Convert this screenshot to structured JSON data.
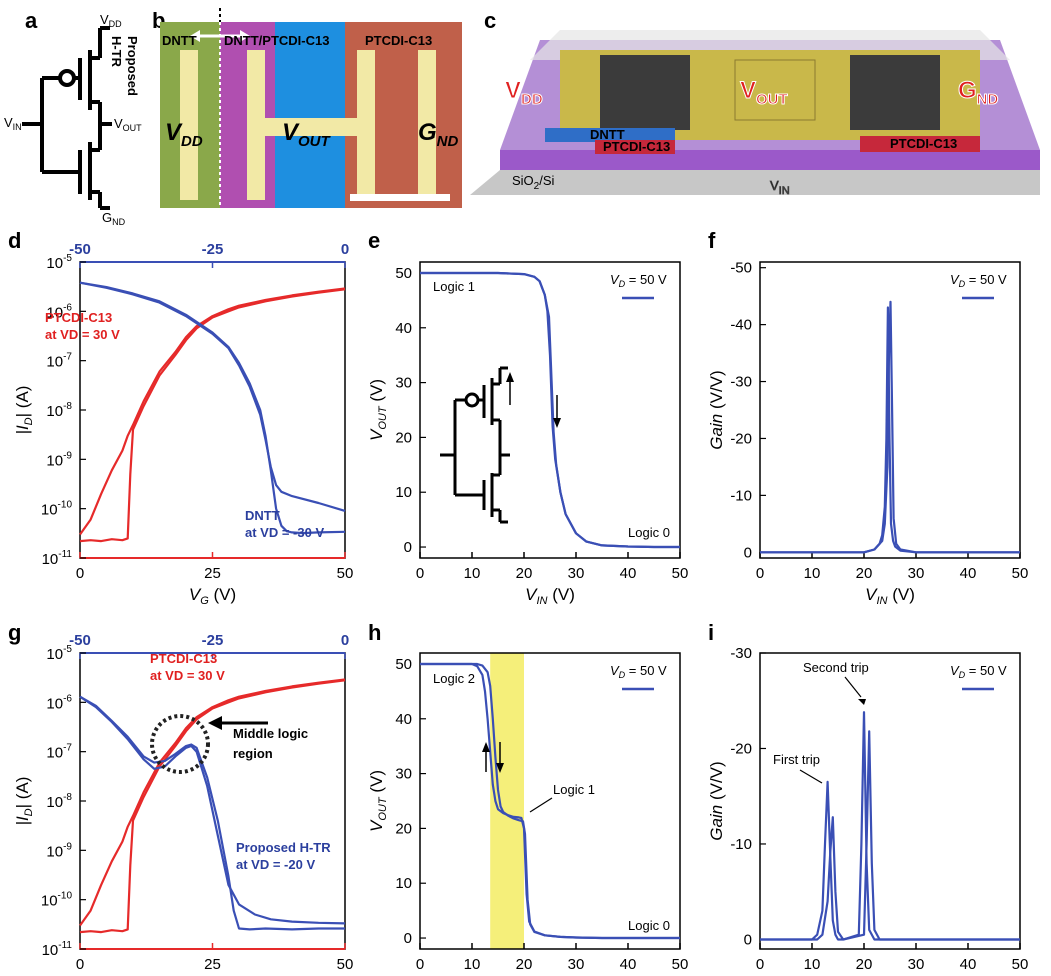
{
  "panels": {
    "a": {
      "letter": "a",
      "vdd": "V",
      "vdd_sub": "DD",
      "vin": "V",
      "vin_sub": "IN",
      "vout": "V",
      "vout_sub": "OUT",
      "gnd": "G",
      "gnd_sub": "ND",
      "title_line1": "Proposed",
      "title_line2": "H-TR"
    },
    "b": {
      "letter": "b",
      "label_left": "DNTT",
      "label_mid": "DNTT/PTCDI-C13",
      "label_right": "PTCDI-C13",
      "vdd": "V",
      "vdd_sub": "DD",
      "vout": "V",
      "vout_sub": "OUT",
      "gnd": "G",
      "gnd_sub": "ND"
    },
    "c": {
      "letter": "c",
      "vdd": "V",
      "vdd_sub": "DD",
      "vout": "V",
      "vout_sub": "OUT",
      "gnd": "G",
      "gnd_sub": "ND",
      "dntt": "DNTT",
      "ptcdi_left": "PTCDI-C13",
      "ptcdi_right": "PTCDI-C13",
      "substrate": "SiO",
      "substrate_sub": "2",
      "substrate_tail": "/Si",
      "vin": "V",
      "vin_sub": "IN"
    },
    "d_letter": "d",
    "e_letter": "e",
    "f_letter": "f",
    "g_letter": "g",
    "h_letter": "h",
    "i_letter": "i"
  },
  "colors": {
    "blue": "#3a4fb5",
    "red": "#e62a2a",
    "yellow": "#f5ef7a"
  },
  "chart_data": [
    {
      "id": "d",
      "type": "line",
      "yscale": "log",
      "xlabel": "V_G (V)",
      "ylabel": "|I_D| (A)",
      "xlim": [
        0,
        50
      ],
      "ylim": [
        1e-11,
        1e-05
      ],
      "xticks": [
        0,
        25,
        50
      ],
      "x2ticks": [
        -50,
        -25,
        0
      ],
      "yticks": [
        "10^-11",
        "10^-10",
        "10^-9",
        "10^-8",
        "10^-7",
        "10^-6",
        "10^-5"
      ],
      "annotations": [
        {
          "text": "PTCDI-C13",
          "color": "red"
        },
        {
          "text": "at VD = 30 V",
          "color": "red"
        },
        {
          "text": "DNTT",
          "color": "blue"
        },
        {
          "text": "at VD = -30 V",
          "color": "blue"
        }
      ],
      "series": [
        {
          "color": "red",
          "x": [
            0,
            2,
            4,
            6,
            8,
            9,
            10,
            12,
            15,
            18,
            20,
            22,
            25,
            28,
            30,
            35,
            40,
            45,
            50
          ],
          "y": [
            3e-11,
            6e-11,
            2e-10,
            6e-10,
            1.5e-09,
            3e-09,
            5e-09,
            1.5e-08,
            6e-08,
            1.5e-07,
            3e-07,
            5e-07,
            8e-07,
            1.1e-06,
            1.3e-06,
            1.7e-06,
            2.1e-06,
            2.5e-06,
            2.9e-06
          ]
        },
        {
          "color": "red",
          "x": [
            0,
            2,
            4,
            6,
            8,
            9,
            9.5,
            10,
            12,
            15,
            18,
            20,
            22,
            25,
            28,
            30,
            35,
            40,
            45,
            50
          ],
          "y": [
            2.2e-11,
            2.3e-11,
            2.2e-11,
            2.4e-11,
            2.3e-11,
            2.5e-11,
            5e-10,
            4e-09,
            1.2e-08,
            5e-08,
            1.3e-07,
            2.6e-07,
            4.5e-07,
            7.5e-07,
            1e-06,
            1.2e-06,
            1.6e-06,
            2e-06,
            2.4e-06,
            2.8e-06
          ]
        },
        {
          "color": "blue",
          "x": [
            0,
            5,
            10,
            15,
            20,
            25,
            28,
            30,
            32,
            34,
            35,
            36,
            37,
            38,
            40,
            45,
            50
          ],
          "y": [
            3.8e-06,
            3e-06,
            2.2e-06,
            1.5e-06,
            8e-07,
            3.5e-07,
            1.8e-07,
            8e-08,
            3e-08,
            8e-09,
            2.5e-09,
            7e-10,
            3e-10,
            2.2e-10,
            1.8e-10,
            1.3e-10,
            9e-11
          ]
        },
        {
          "color": "blue",
          "x": [
            0,
            5,
            10,
            15,
            20,
            25,
            28,
            30,
            32,
            34,
            35,
            36,
            37,
            38,
            39,
            40,
            42,
            45,
            50
          ],
          "y": [
            3.8e-06,
            3.1e-06,
            2.3e-06,
            1.6e-06,
            8.5e-07,
            3.7e-07,
            1.9e-07,
            9e-08,
            3.5e-08,
            1e-08,
            3e-09,
            6e-10,
            1e-10,
            4.5e-11,
            3.5e-11,
            3.3e-11,
            3.2e-11,
            3.3e-11,
            3.4e-11
          ]
        }
      ]
    },
    {
      "id": "e",
      "type": "line",
      "xlabel": "V_IN (V)",
      "ylabel": "V_OUT (V)",
      "xlim": [
        0,
        50
      ],
      "ylim": [
        -2,
        52
      ],
      "xticks": [
        0,
        10,
        20,
        30,
        40,
        50
      ],
      "yticks": [
        0,
        10,
        20,
        30,
        40,
        50
      ],
      "legend": "V_D = 50 V",
      "annotations": [
        {
          "text": "Logic 1"
        },
        {
          "text": "Logic 0"
        }
      ],
      "series": [
        {
          "color": "blue",
          "x": [
            0,
            10,
            15,
            20,
            22,
            23,
            24,
            24.5,
            25,
            25.5,
            26,
            27,
            28,
            30,
            32,
            35,
            40,
            45,
            50
          ],
          "y": [
            50,
            50,
            50,
            49.8,
            49.3,
            48.5,
            46,
            43,
            35,
            22,
            16,
            10,
            6,
            2.5,
            1,
            0.3,
            0.1,
            0,
            0
          ]
        },
        {
          "color": "blue",
          "x": [
            0,
            10,
            15,
            20,
            22,
            23,
            24,
            24.8,
            25.2,
            25.7,
            26.2,
            27,
            28,
            30,
            32,
            35,
            40,
            45,
            50
          ],
          "y": [
            50,
            50,
            50,
            49.8,
            49.3,
            48.5,
            46,
            42,
            33,
            21,
            15,
            10,
            6,
            2.5,
            1,
            0.3,
            0.1,
            0,
            0
          ]
        }
      ]
    },
    {
      "id": "f",
      "type": "line",
      "xlabel": "V_IN (V)",
      "ylabel": "Gain (V/V)",
      "xlim": [
        0,
        50
      ],
      "ylim": [
        1,
        -51
      ],
      "xticks": [
        0,
        10,
        20,
        30,
        40,
        50
      ],
      "yticks": [
        0,
        -10,
        -20,
        -30,
        -40,
        -50
      ],
      "legend": "V_D = 50 V",
      "series": [
        {
          "color": "blue",
          "x": [
            0,
            20,
            22,
            23,
            23.5,
            24,
            24.3,
            24.6,
            24.9,
            25.2,
            25.6,
            26,
            27,
            30,
            50
          ],
          "y": [
            0,
            0,
            -0.5,
            -1.5,
            -3,
            -8,
            -20,
            -43,
            -20,
            -5,
            -2,
            -1,
            -0.3,
            0,
            0
          ]
        },
        {
          "color": "blue",
          "x": [
            0,
            20,
            22,
            23.5,
            24,
            24.5,
            24.8,
            25.1,
            25.4,
            25.7,
            26.2,
            27,
            30,
            50
          ],
          "y": [
            0,
            0,
            -0.5,
            -2,
            -5,
            -15,
            -35,
            -44,
            -25,
            -6,
            -1.5,
            -0.5,
            0,
            0
          ]
        }
      ]
    },
    {
      "id": "g",
      "type": "line",
      "yscale": "log",
      "xlabel": "V_G (V)",
      "ylabel": "|I_D| (A)",
      "xlim": [
        0,
        50
      ],
      "ylim": [
        1e-11,
        1e-05
      ],
      "xticks": [
        0,
        25,
        50
      ],
      "x2ticks": [
        -50,
        -25,
        0
      ],
      "yticks": [
        "10^-11",
        "10^-10",
        "10^-9",
        "10^-8",
        "10^-7",
        "10^-6",
        "10^-5"
      ],
      "annotations": [
        {
          "text": "PTCDI-C13",
          "color": "red"
        },
        {
          "text": "at VD = 30 V",
          "color": "red"
        },
        {
          "text": "Middle logic"
        },
        {
          "text": "region"
        },
        {
          "text": "Proposed H-TR",
          "color": "blue"
        },
        {
          "text": "at VD = -20 V",
          "color": "blue"
        }
      ],
      "series": [
        {
          "color": "red",
          "x": [
            0,
            2,
            4,
            6,
            8,
            9,
            10,
            12,
            15,
            18,
            20,
            22,
            25,
            28,
            30,
            35,
            40,
            45,
            50
          ],
          "y": [
            3e-11,
            6e-11,
            2e-10,
            6e-10,
            1.5e-09,
            3e-09,
            5e-09,
            1.5e-08,
            6e-08,
            1.5e-07,
            3e-07,
            5e-07,
            8e-07,
            1.1e-06,
            1.3e-06,
            1.7e-06,
            2.1e-06,
            2.5e-06,
            2.9e-06
          ]
        },
        {
          "color": "red",
          "x": [
            0,
            2,
            4,
            6,
            8,
            9,
            9.5,
            10,
            12,
            15,
            18,
            20,
            22,
            25,
            28,
            30,
            35,
            40,
            45,
            50
          ],
          "y": [
            2.2e-11,
            2.3e-11,
            2.2e-11,
            2.4e-11,
            2.3e-11,
            2.5e-11,
            5e-10,
            4e-09,
            1.2e-08,
            5e-08,
            1.3e-07,
            2.6e-07,
            4.5e-07,
            7.5e-07,
            1e-06,
            1.2e-06,
            1.6e-06,
            2e-06,
            2.4e-06,
            2.8e-06
          ]
        },
        {
          "color": "blue",
          "x": [
            0,
            3,
            6,
            9,
            12,
            14,
            16,
            18,
            20,
            21,
            22,
            24,
            26,
            28,
            30,
            33,
            36,
            40,
            45,
            50
          ],
          "y": [
            1.3e-06,
            8e-07,
            4e-07,
            1.8e-07,
            7e-08,
            4.5e-08,
            5e-08,
            8e-08,
            1.2e-07,
            1.3e-07,
            1e-07,
            2e-08,
            2e-09,
            2e-10,
            8e-11,
            5e-11,
            4e-11,
            3.6e-11,
            3.4e-11,
            3.3e-11
          ]
        },
        {
          "color": "blue",
          "x": [
            0,
            3,
            6,
            9,
            12,
            14,
            16,
            18,
            20,
            21,
            22,
            24,
            26,
            28,
            29,
            30,
            32,
            35,
            40,
            45,
            50
          ],
          "y": [
            1.3e-06,
            8.5e-07,
            4.2e-07,
            2e-07,
            8e-08,
            6e-08,
            6.5e-08,
            9e-08,
            1.3e-07,
            1.4e-07,
            1.2e-07,
            3e-08,
            4e-09,
            3e-10,
            6e-11,
            2.6e-11,
            2.5e-11,
            2.6e-11,
            2.5e-11,
            2.6e-11,
            2.6e-11
          ]
        }
      ]
    },
    {
      "id": "h",
      "type": "line",
      "xlabel": "V_IN (V)",
      "ylabel": "V_OUT (V)",
      "xlim": [
        0,
        50
      ],
      "ylim": [
        -2,
        52
      ],
      "xticks": [
        0,
        10,
        20,
        30,
        40,
        50
      ],
      "yticks": [
        0,
        10,
        20,
        30,
        40,
        50
      ],
      "legend": "V_D = 50 V",
      "highlight": [
        13.5,
        20
      ],
      "annotations": [
        {
          "text": "Logic 2"
        },
        {
          "text": "Logic 1"
        },
        {
          "text": "Logic 0"
        }
      ],
      "series": [
        {
          "color": "blue",
          "x": [
            0,
            5,
            10,
            11,
            12,
            12.5,
            13,
            13.5,
            14,
            14.5,
            15,
            16,
            17,
            18,
            19,
            19.5,
            20,
            20.5,
            21,
            22,
            24,
            27,
            30,
            35,
            40,
            45,
            50
          ],
          "y": [
            50,
            50,
            50,
            49.6,
            48,
            45,
            40,
            34,
            28,
            25,
            23.5,
            22.8,
            22.4,
            22.1,
            22,
            21.9,
            20,
            8,
            3,
            1.2,
            0.5,
            0.2,
            0.1,
            0,
            0,
            0,
            0
          ]
        },
        {
          "color": "blue",
          "x": [
            0,
            5,
            10,
            11,
            12,
            13,
            13.5,
            14,
            14.5,
            15,
            15.5,
            16,
            17,
            18,
            19,
            19.8,
            20.2,
            20.7,
            21.2,
            22,
            24,
            27,
            30,
            35,
            40,
            45,
            50
          ],
          "y": [
            50,
            50,
            50,
            50,
            49.7,
            48.5,
            46,
            40,
            33,
            27,
            24,
            23,
            22.3,
            21.8,
            21.5,
            21.3,
            19,
            7,
            2.5,
            1.1,
            0.5,
            0.2,
            0.1,
            0,
            0,
            0,
            0
          ]
        }
      ]
    },
    {
      "id": "i",
      "type": "line",
      "xlabel": "V_IN (V)",
      "ylabel": "Gain (V/V)",
      "xlim": [
        0,
        50
      ],
      "ylim": [
        1,
        -30
      ],
      "xticks": [
        0,
        10,
        20,
        30,
        40,
        50
      ],
      "yticks": [
        0,
        -10,
        -20,
        -30
      ],
      "legend": "V_D = 50 V",
      "annotations": [
        {
          "text": "First trip"
        },
        {
          "text": "Second trip"
        }
      ],
      "series": [
        {
          "color": "blue",
          "x": [
            0,
            10,
            11,
            12,
            12.5,
            13,
            13.5,
            14,
            14.5,
            15,
            16,
            19,
            19.5,
            20,
            20.5,
            21,
            22,
            30,
            50
          ],
          "y": [
            0,
            0,
            -0.5,
            -3,
            -10,
            -16.5,
            -9,
            -2,
            -0.5,
            0,
            0,
            -0.5,
            -10,
            -23.8,
            -8,
            -1,
            0,
            0,
            0
          ]
        },
        {
          "color": "blue",
          "x": [
            0,
            11,
            12,
            13,
            13.5,
            14,
            14.5,
            15,
            16,
            20,
            20.5,
            21,
            21.5,
            22,
            23,
            30,
            50
          ],
          "y": [
            0,
            0,
            -0.5,
            -4,
            -9,
            -12.8,
            -5,
            -0.8,
            0,
            -0.5,
            -10,
            -21.8,
            -8,
            -1,
            0,
            0,
            0
          ]
        }
      ]
    }
  ]
}
